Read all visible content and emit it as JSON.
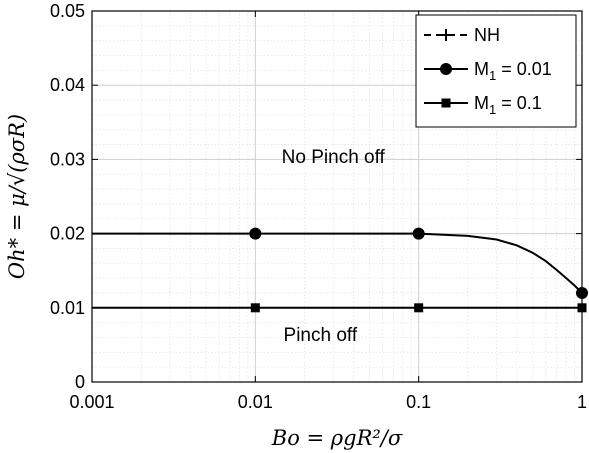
{
  "chart_data": {
    "type": "line",
    "xscale": "log",
    "xlim": [
      0.001,
      1
    ],
    "ylim": [
      0,
      0.05
    ],
    "grid": true,
    "xlabel": "Bo = ρgR²/σ",
    "ylabel": "Oh* = μ/√(ρσR)",
    "xticks": [
      "0.001",
      "0.01",
      "0.1",
      "1"
    ],
    "yticks": [
      "0",
      "0.01",
      "0.02",
      "0.03",
      "0.04",
      "0.05"
    ],
    "legend_position": "top-right",
    "annotations": [
      {
        "text": "No Pinch off",
        "x": 0.03,
        "y": 0.0295
      },
      {
        "text": "Pinch off",
        "x": 0.025,
        "y": 0.0055
      }
    ],
    "series": [
      {
        "name": "NH",
        "marker": "plus",
        "linestyle": "dashed",
        "x": [],
        "y": []
      },
      {
        "name": "M",
        "name_sub": "1",
        "name_suffix": " = 0.01",
        "marker": "circle",
        "linestyle": "solid",
        "x": [
          0.001,
          0.01,
          0.05,
          0.1,
          0.2,
          0.3,
          0.4,
          0.5,
          0.6,
          0.7,
          0.8,
          0.9,
          1.0
        ],
        "y": [
          0.02,
          0.02,
          0.02,
          0.02,
          0.0197,
          0.0192,
          0.0184,
          0.0174,
          0.0163,
          0.0151,
          0.014,
          0.013,
          0.012
        ],
        "marker_x": [
          0.01,
          0.1,
          1.0
        ],
        "marker_y": [
          0.02,
          0.02,
          0.012
        ]
      },
      {
        "name": "M",
        "name_sub": "1",
        "name_suffix": " = 0.1",
        "marker": "square",
        "linestyle": "solid",
        "x": [
          0.001,
          1.0
        ],
        "y": [
          0.01,
          0.01
        ],
        "marker_x": [
          0.01,
          0.1,
          1.0
        ],
        "marker_y": [
          0.01,
          0.01,
          0.01
        ]
      }
    ]
  }
}
